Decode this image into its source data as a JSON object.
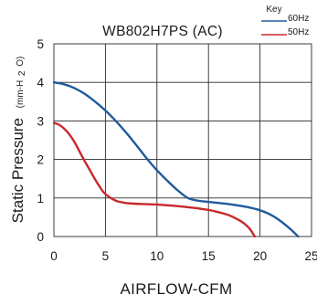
{
  "chart_data": {
    "type": "line",
    "title": "WB802H7PS (AC)",
    "xlabel": "AIRFLOW-CFM",
    "ylabel": "Static Pressure",
    "ylabel_unit_prefix": "(mm-H",
    "ylabel_unit_sub": "2",
    "ylabel_unit_suffix": "O)",
    "xlim": [
      0,
      25
    ],
    "ylim": [
      0,
      5
    ],
    "xticks": [
      0,
      5,
      10,
      15,
      20,
      25
    ],
    "yticks": [
      0,
      1,
      2,
      3,
      4,
      5
    ],
    "grid": true,
    "legend_title": "Key",
    "legend_position": "top-right",
    "series": [
      {
        "name": "60Hz",
        "color": "#1f5b9b",
        "x": [
          0,
          1,
          2,
          3,
          4,
          5,
          6,
          7,
          8,
          9,
          10,
          11,
          12,
          13,
          14,
          15,
          16,
          17,
          18,
          19,
          20,
          21,
          22,
          23,
          23.7
        ],
        "y": [
          4.0,
          3.95,
          3.85,
          3.7,
          3.5,
          3.27,
          3.0,
          2.7,
          2.37,
          2.03,
          1.72,
          1.45,
          1.2,
          1.0,
          0.93,
          0.9,
          0.87,
          0.84,
          0.8,
          0.75,
          0.68,
          0.57,
          0.4,
          0.18,
          0.0
        ]
      },
      {
        "name": "50Hz",
        "color": "#c8282c",
        "x": [
          0,
          0.5,
          1,
          1.5,
          2,
          2.5,
          3,
          3.5,
          4,
          4.5,
          5,
          6,
          7,
          8,
          9,
          10,
          11,
          12,
          13,
          14,
          15,
          16,
          17,
          18,
          18.5,
          19,
          19.5
        ],
        "y": [
          2.95,
          2.9,
          2.8,
          2.65,
          2.45,
          2.2,
          1.95,
          1.72,
          1.48,
          1.27,
          1.1,
          0.93,
          0.87,
          0.85,
          0.84,
          0.83,
          0.81,
          0.79,
          0.76,
          0.73,
          0.69,
          0.63,
          0.55,
          0.42,
          0.33,
          0.2,
          0.0
        ]
      }
    ]
  }
}
